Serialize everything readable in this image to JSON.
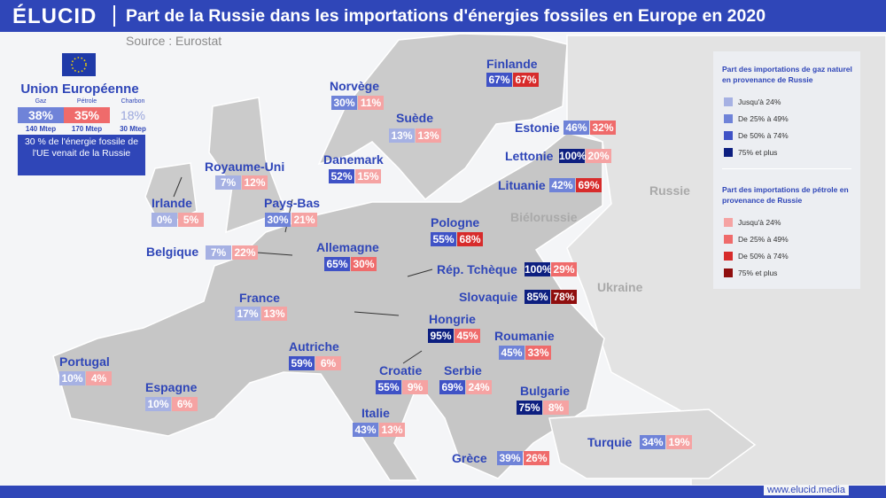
{
  "header": {
    "brand": "ÉLUCID",
    "title": "Part de la Russie dans les importations d'énergies fossiles en Europe en 2020",
    "source": "Source : Eurostat"
  },
  "eu": {
    "title": "Union Européenne",
    "items": [
      {
        "label": "Gaz",
        "value": "38%",
        "mtep": "140 Mtep"
      },
      {
        "label": "Pétrole",
        "value": "35%",
        "mtep": "170 Mtep"
      },
      {
        "label": "Charbon",
        "value": "18%",
        "mtep": "30 Mtep"
      }
    ],
    "note": "30 % de l'énergie fossile de l'UE venait de la Russie"
  },
  "countries": [
    {
      "name": "Finlande",
      "gas": "67%",
      "oil": "67%"
    },
    {
      "name": "Norvège",
      "gas": "30%",
      "oil": "11%"
    },
    {
      "name": "Suède",
      "gas": "13%",
      "oil": "13%"
    },
    {
      "name": "Danemark",
      "gas": "52%",
      "oil": "15%"
    },
    {
      "name": "Royaume-Uni",
      "gas": "7%",
      "oil": "12%"
    },
    {
      "name": "Irlande",
      "gas": "0%",
      "oil": "5%"
    },
    {
      "name": "Pays-Bas",
      "gas": "30%",
      "oil": "21%"
    },
    {
      "name": "Belgique",
      "gas": "7%",
      "oil": "22%"
    },
    {
      "name": "Allemagne",
      "gas": "65%",
      "oil": "30%"
    },
    {
      "name": "France",
      "gas": "17%",
      "oil": "13%"
    },
    {
      "name": "Autriche",
      "gas": "59%",
      "oil": "6%"
    },
    {
      "name": "Portugal",
      "gas": "10%",
      "oil": "4%"
    },
    {
      "name": "Espagne",
      "gas": "10%",
      "oil": "6%"
    },
    {
      "name": "Italie",
      "gas": "43%",
      "oil": "13%"
    },
    {
      "name": "Estonie",
      "gas": "46%",
      "oil": "32%"
    },
    {
      "name": "Lettonie",
      "gas": "100%",
      "oil": "20%"
    },
    {
      "name": "Lituanie",
      "gas": "42%",
      "oil": "69%"
    },
    {
      "name": "Pologne",
      "gas": "55%",
      "oil": "68%"
    },
    {
      "name": "Rép. Tchèque",
      "gas": "100%",
      "oil": "29%"
    },
    {
      "name": "Slovaquie",
      "gas": "85%",
      "oil": "78%"
    },
    {
      "name": "Hongrie",
      "gas": "95%",
      "oil": "45%"
    },
    {
      "name": "Roumanie",
      "gas": "45%",
      "oil": "33%"
    },
    {
      "name": "Croatie",
      "gas": "55%",
      "oil": "9%"
    },
    {
      "name": "Serbie",
      "gas": "69%",
      "oil": "24%"
    },
    {
      "name": "Bulgarie",
      "gas": "75%",
      "oil": "8%"
    },
    {
      "name": "Grèce",
      "gas": "39%",
      "oil": "26%"
    },
    {
      "name": "Turquie",
      "gas": "34%",
      "oil": "19%"
    }
  ],
  "background_labels": [
    "Russie",
    "Biélorussie",
    "Ukraine"
  ],
  "legend": {
    "gas": {
      "title": "Part des importations de gaz naturel en provenance de Russie",
      "items": [
        {
          "label": "Jusqu'à 24%",
          "color": "#a6b1e3"
        },
        {
          "label": "De 25% à 49%",
          "color": "#6f83d8"
        },
        {
          "label": "De 50% à 74%",
          "color": "#3f52c6"
        },
        {
          "label": "75% et plus",
          "color": "#0d1f80"
        }
      ]
    },
    "oil": {
      "title": "Part des importations de pétrole en provenance de Russie",
      "items": [
        {
          "label": "Jusqu'à 24%",
          "color": "#f5a3a3"
        },
        {
          "label": "De 25% à 49%",
          "color": "#ef6b6b"
        },
        {
          "label": "De 50% à 74%",
          "color": "#d72b2b"
        },
        {
          "label": "75% et plus",
          "color": "#8f0e0e"
        }
      ]
    }
  },
  "footer": "www.elucid.media"
}
